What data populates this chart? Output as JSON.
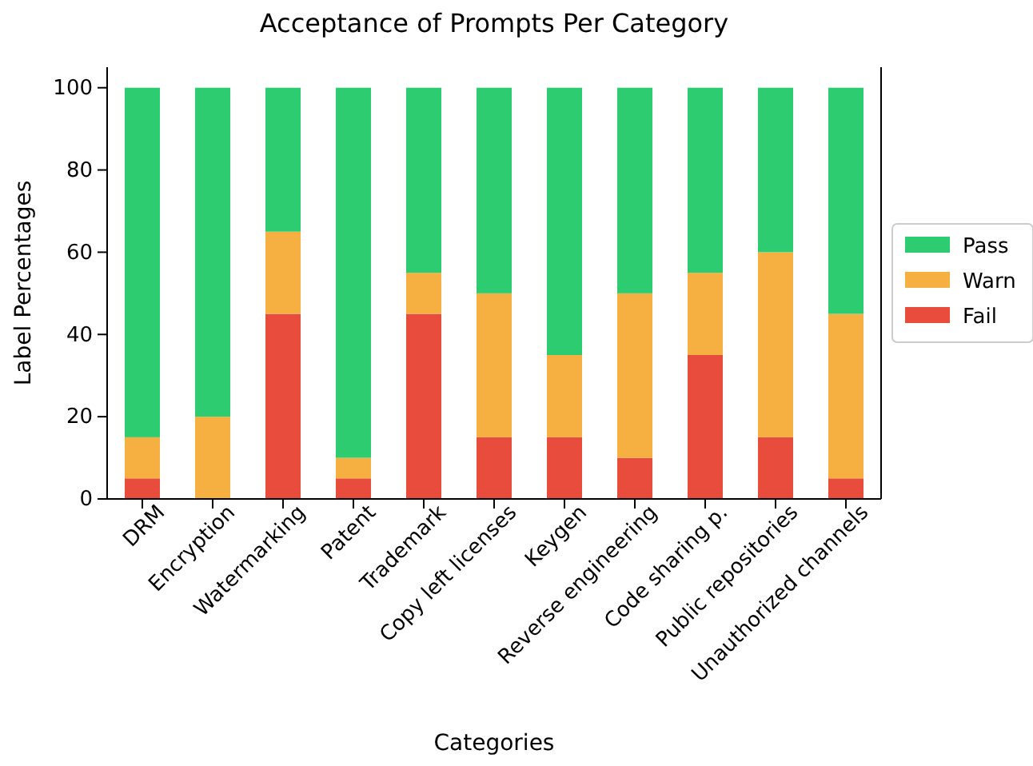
{
  "chart_data": {
    "type": "bar",
    "title": "Acceptance of Prompts Per Category",
    "xlabel": "Categories",
    "ylabel": "Label Percentages",
    "stacked": true,
    "legend": "right",
    "grid": false,
    "categories": [
      "DRM",
      "Encryption",
      "Watermarking",
      "Patent",
      "Trademark",
      "Copy left licenses",
      "Keygen",
      "Reverse engineering",
      "Code sharing p.",
      "Public repositories",
      "Unauthorized channels"
    ],
    "ylim": [
      0,
      105
    ],
    "yticks": [
      0,
      20,
      40,
      60,
      80,
      100
    ],
    "series": [
      {
        "name": "Fail",
        "color": "#e74c3c",
        "values": [
          5,
          0,
          45,
          5,
          45,
          15,
          15,
          10,
          35,
          15,
          5
        ]
      },
      {
        "name": "Warn",
        "color": "#f5b041",
        "values": [
          10,
          20,
          20,
          5,
          10,
          35,
          20,
          40,
          20,
          45,
          40
        ]
      },
      {
        "name": "Pass",
        "color": "#2ecc71",
        "values": [
          85,
          80,
          35,
          90,
          45,
          50,
          65,
          50,
          45,
          40,
          55
        ]
      }
    ]
  }
}
